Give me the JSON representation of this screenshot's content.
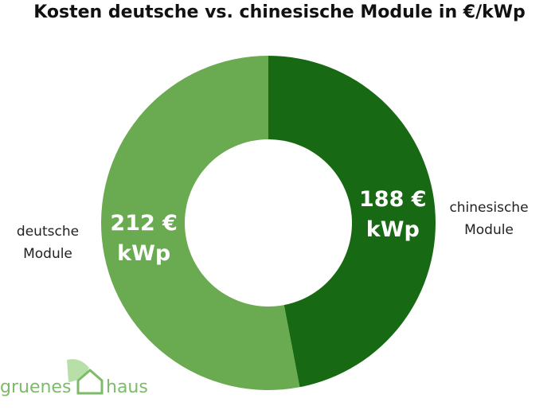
{
  "chart_data": {
    "type": "donut",
    "title": "Kosten deutsche vs. chinesische Module in €/kWp",
    "categories": [
      "chinesische Module",
      "deutsche Module"
    ],
    "values": [
      188,
      212
    ],
    "value_labels": [
      "188 € kWp",
      "212 € kWp"
    ],
    "colors": [
      "#176a13",
      "#6aaa50"
    ]
  },
  "logo": {
    "left": "gruenes",
    "right": "haus"
  }
}
